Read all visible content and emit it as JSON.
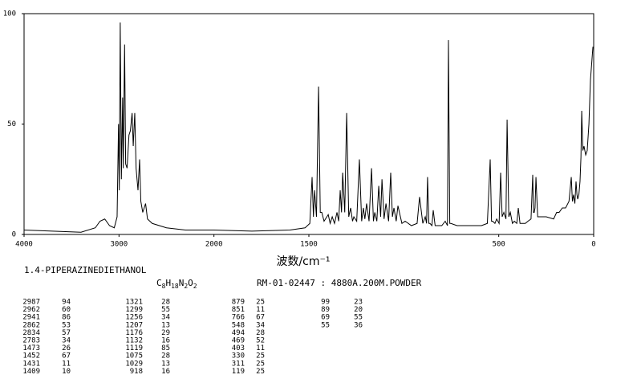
{
  "chart_data": {
    "type": "line",
    "x_label": "波数/cm⁻¹",
    "xlim": [
      4000,
      0
    ],
    "x_scale_change": 2000,
    "xticks": [
      4000,
      3000,
      2000,
      1500,
      500,
      0
    ],
    "ylim": [
      0,
      100
    ],
    "yticks": [
      0,
      50,
      100
    ],
    "color": "#000000",
    "x": [
      4000,
      3700,
      3400,
      3250,
      3200,
      3150,
      3100,
      3050,
      3020,
      3005,
      2997,
      2987,
      2975,
      2962,
      2955,
      2941,
      2930,
      2915,
      2895,
      2880,
      2862,
      2850,
      2834,
      2820,
      2800,
      2783,
      2770,
      2750,
      2720,
      2700,
      2650,
      2500,
      2300,
      2000,
      1800,
      1600,
      1520,
      1495,
      1483,
      1476,
      1470,
      1460,
      1449,
      1440,
      1432,
      1420,
      1398,
      1388,
      1377,
      1365,
      1352,
      1343,
      1335,
      1328,
      1322,
      1311,
      1301,
      1290,
      1280,
      1270,
      1263,
      1248,
      1234,
      1222,
      1213,
      1205,
      1196,
      1183,
      1170,
      1160,
      1153,
      1142,
      1132,
      1122,
      1115,
      1104,
      1094,
      1080,
      1069,
      1060,
      1052,
      1040,
      1031,
      1010,
      993,
      960,
      930,
      917,
      900,
      887,
      880,
      875,
      868,
      862,
      852,
      845,
      835,
      824,
      800,
      782,
      770,
      765,
      758,
      752,
      720,
      676,
      620,
      591,
      560,
      545,
      538,
      532,
      520,
      511,
      498,
      490,
      482,
      473,
      462,
      456,
      447,
      439,
      428,
      418,
      405,
      397,
      388,
      376,
      360,
      346,
      330,
      321,
      317,
      313,
      309,
      304,
      295,
      287,
      250,
      211,
      195,
      182,
      165,
      148,
      130,
      118,
      112,
      106,
      99,
      93,
      88,
      84,
      78,
      72,
      67,
      63,
      57,
      51,
      42,
      34,
      25,
      17,
      10,
      4
    ],
    "values": [
      2,
      1.5,
      1,
      3,
      6,
      7,
      4,
      3,
      8,
      50,
      20,
      96,
      25,
      62,
      30,
      86,
      32,
      30,
      45,
      47,
      55,
      40,
      55,
      30,
      20,
      34,
      15,
      10,
      14,
      7,
      5,
      3,
      2,
      2,
      1.5,
      2,
      3,
      5,
      26,
      8,
      20,
      8,
      67,
      10,
      10,
      6,
      9,
      5,
      8,
      5,
      10,
      6,
      20,
      10,
      28,
      10,
      55,
      8,
      12,
      6,
      8,
      6,
      34,
      6,
      12,
      7,
      14,
      6,
      30,
      6,
      10,
      6,
      22,
      8,
      25,
      7,
      14,
      6,
      28,
      8,
      12,
      6,
      13,
      5,
      6,
      4,
      5,
      17,
      5,
      8,
      5,
      26,
      5,
      5,
      4,
      11,
      4,
      4,
      4,
      6,
      4,
      88,
      5,
      5,
      4,
      4,
      4,
      4,
      5,
      34,
      6,
      6,
      5,
      7,
      5,
      28,
      8,
      10,
      7,
      52,
      8,
      10,
      5,
      6,
      5,
      12,
      5,
      5,
      5,
      6,
      7,
      27,
      10,
      10,
      12,
      26,
      8,
      8,
      8,
      7,
      10,
      10,
      12,
      12,
      15,
      26,
      15,
      18,
      14,
      24,
      18,
      16,
      18,
      24,
      35,
      56,
      38,
      40,
      36,
      38,
      50,
      70,
      78,
      85
    ]
  },
  "compound_name": "1.4-PIPERAZINEDIETHANOL",
  "formula": {
    "elements": [
      "C",
      "H",
      "N",
      "O"
    ],
    "counts": [
      "8",
      "18",
      "2",
      "2"
    ]
  },
  "sample": "RM-01-02447 : 4880A.200M.POWDER",
  "peak_table": {
    "columns": [
      [
        [
          2987,
          94
        ],
        [
          2962,
          60
        ],
        [
          2941,
          86
        ],
        [
          2862,
          53
        ],
        [
          2834,
          57
        ],
        [
          2783,
          34
        ],
        [
          1473,
          26
        ],
        [
          1452,
          67
        ],
        [
          1431,
          11
        ],
        [
          1409,
          10
        ]
      ],
      [
        [
          1321,
          28
        ],
        [
          1299,
          55
        ],
        [
          1256,
          34
        ],
        [
          1207,
          13
        ],
        [
          1176,
          29
        ],
        [
          1132,
          16
        ],
        [
          1119,
          85
        ],
        [
          1075,
          28
        ],
        [
          1029,
          13
        ],
        [
          918,
          16
        ]
      ],
      [
        [
          879,
          25
        ],
        [
          851,
          11
        ],
        [
          766,
          67
        ],
        [
          548,
          34
        ],
        [
          494,
          28
        ],
        [
          469,
          52
        ],
        [
          403,
          11
        ],
        [
          330,
          25
        ],
        [
          311,
          25
        ],
        [
          119,
          25
        ]
      ],
      [
        [
          99,
          23
        ],
        [
          89,
          20
        ],
        [
          69,
          55
        ],
        [
          55,
          36
        ]
      ]
    ]
  }
}
